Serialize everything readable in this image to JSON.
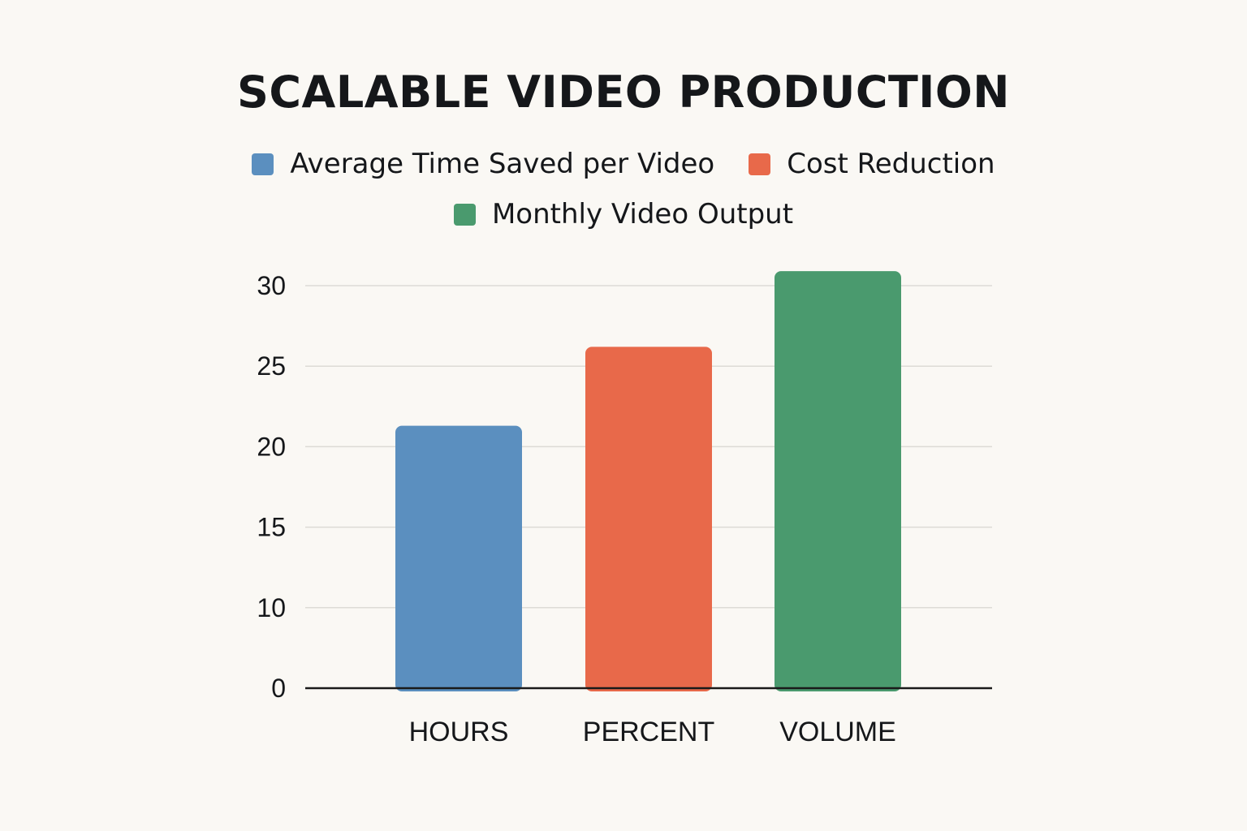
{
  "chart_data": {
    "type": "bar",
    "title": "SCALABLE VIDEO PRODUCTION",
    "categories": [
      "HOURS",
      "PERCENT",
      "VOLUME"
    ],
    "series": [
      {
        "name": "Average Time Saved per Video",
        "category": "HOURS",
        "value": 21.3,
        "color": "#5b8fbf"
      },
      {
        "name": "Cost Reduction",
        "category": "PERCENT",
        "value": 26.2,
        "color": "#e8694a"
      },
      {
        "name": "Monthly Video Output",
        "category": "VOLUME",
        "value": 30.9,
        "color": "#4a9a6e"
      }
    ],
    "yticks": [
      0,
      10,
      15,
      20,
      25,
      30
    ],
    "ylim": [
      0,
      30
    ],
    "grid": true,
    "legend_position": "top-center"
  }
}
